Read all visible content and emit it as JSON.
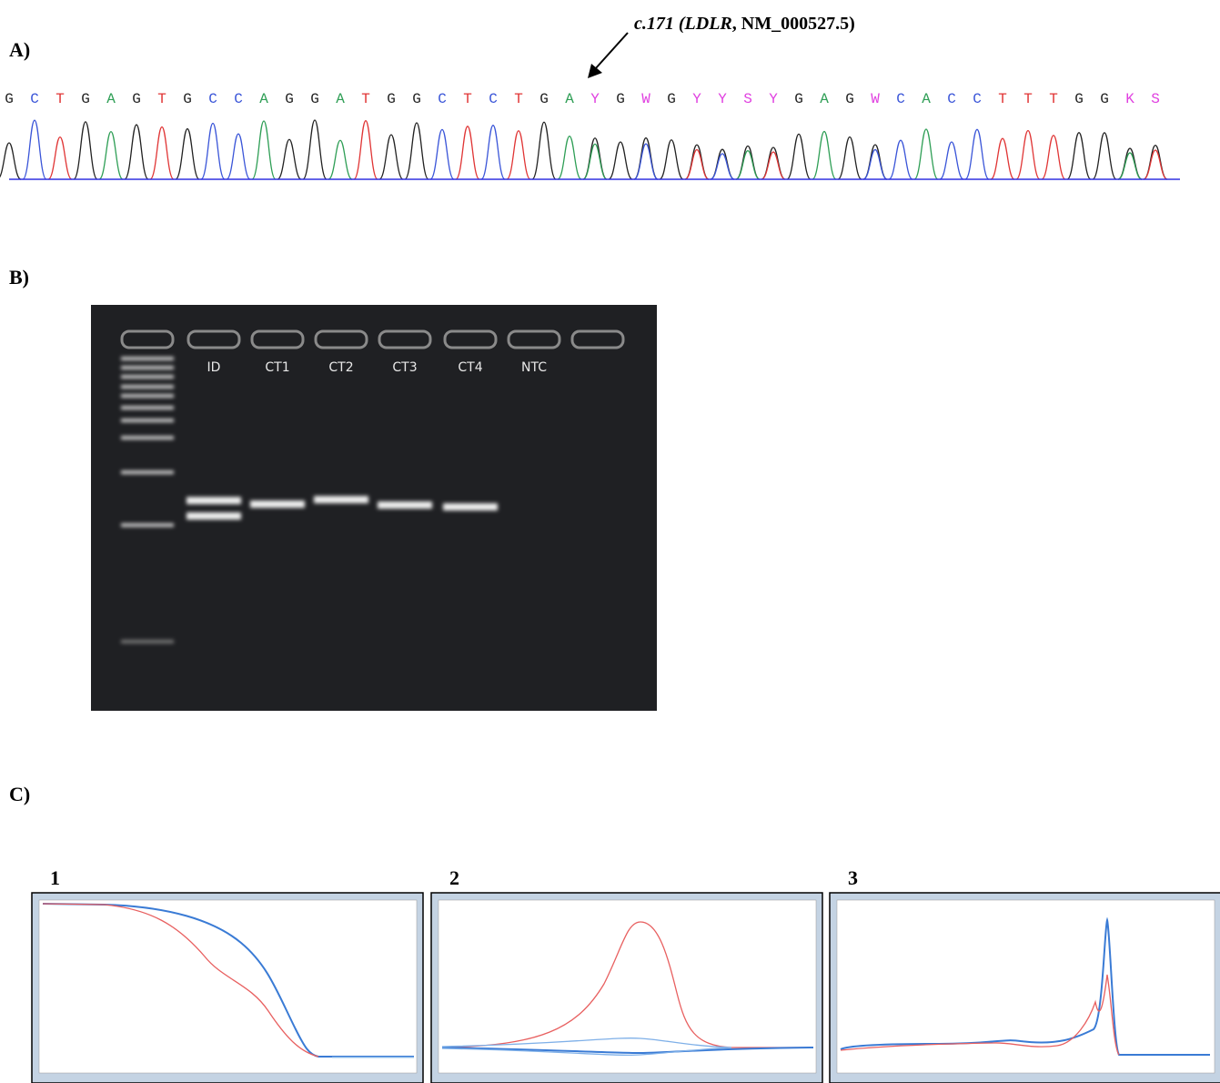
{
  "panel_a": {
    "label": "A)",
    "annotation": {
      "italic_part": "c.171 (LDLR",
      "plain_part": ", NM_000527.5)"
    },
    "bases": [
      "G",
      "C",
      "T",
      "G",
      "A",
      "G",
      "T",
      "G",
      "C",
      "C",
      "A",
      "G",
      "G",
      "A",
      "T",
      "G",
      "G",
      "C",
      "T",
      "C",
      "T",
      "G",
      "A",
      "Y",
      "G",
      "W",
      "G",
      "Y",
      "Y",
      "S",
      "Y",
      "G",
      "A",
      "G",
      "W",
      "C",
      "A",
      "C",
      "C",
      "T",
      "T",
      "T",
      "G",
      "G",
      "K",
      "S"
    ]
  },
  "panel_b": {
    "label": "B)",
    "lanes": [
      "ID",
      "CT1",
      "CT2",
      "CT3",
      "CT4",
      "NTC"
    ]
  },
  "panel_c": {
    "label": "C)",
    "plots": [
      "1",
      "2",
      "3"
    ]
  }
}
